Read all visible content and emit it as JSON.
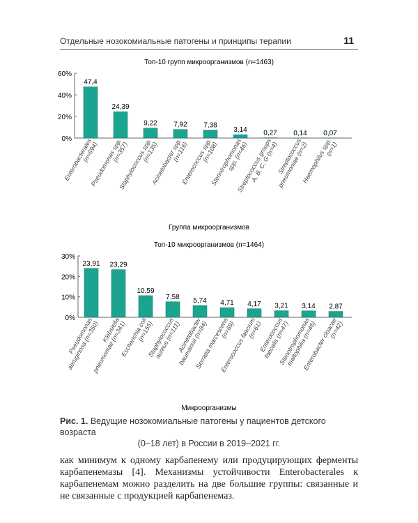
{
  "header": {
    "title": "Отдельные нозокомиальные патогены и принципы терапии",
    "page": "11"
  },
  "chart_data": [
    {
      "type": "bar",
      "title": "Топ-10 групп микроорганизмов (n=1463)",
      "xlabel": "Группа микроорганизмов",
      "ylabel": "",
      "ylim": [
        0,
        60
      ],
      "yticks": [
        "0%",
        "20%",
        "40%",
        "60%"
      ],
      "color": "#1ba591",
      "categories": [
        "Enterobacterales (n=694)",
        "Pseudomonas spp. (n=357)",
        "Staphylococcus spp. (n=135)",
        "Acinetobacter spp. (n=116)",
        "Enterococcus spp. (n=108)",
        "Stenotrophomonas spp. (n=46)",
        "Streptococcus groups A, B, C, G (n=4)",
        "Streptococcus pneumoniae (n=2)",
        "Haemophilus spp. (n=1)"
      ],
      "values": [
        47.4,
        24.39,
        9.22,
        7.92,
        7.38,
        3.14,
        0.27,
        0.14,
        0.07
      ],
      "labels": [
        "47,4",
        "24,39",
        "9,22",
        "7,92",
        "7,38",
        "3,14",
        "0,27",
        "0,14",
        "0,07"
      ]
    },
    {
      "type": "bar",
      "title": "Топ-10 микроорганизмов (n=1464)",
      "xlabel": "Микроорганизмы",
      "ylabel": "",
      "ylim": [
        0,
        30
      ],
      "yticks": [
        "0%",
        "10%",
        "20%",
        "30%"
      ],
      "color": "#1ba591",
      "categories": [
        "Pseudomonas aeruginosa (n=350)",
        "Klebsiella pneumoniae (n=341)",
        "Escherichia coli (n=155)",
        "Staphylococcus aureus (n=111)",
        "Acinetobacter baumannii (n=84)",
        "Serratia marcescens (n=69)",
        "Enterococcus faecium (n=61)",
        "Enterococcus faecalis (n=47)",
        "Stenotrophomonas maltophilia (n=46)",
        "Enterobacter cloacae (n=42)"
      ],
      "values": [
        23.91,
        23.29,
        10.59,
        7.58,
        5.74,
        4.71,
        4.17,
        3.21,
        3.14,
        2.87
      ],
      "labels": [
        "23,91",
        "23,29",
        "10,59",
        "7,58",
        "5,74",
        "4,71",
        "4,17",
        "3,21",
        "3,14",
        "2,87"
      ]
    }
  ],
  "caption": {
    "bold": "Рис. 1.",
    "line1": " Ведущие нозокомиальные патогены у пациентов детского возраста",
    "line2": "(0–18 лет) в России в 2019–2021 гг."
  },
  "body": "как минимум к одному карбапенему или продуцирующих ферменты карбапенемазы [4]. Механизмы устойчивости Enterobacterales к карбапенемам можно разделить на две большие группы: связанные и не связанные с продукцией карбапенемаз."
}
